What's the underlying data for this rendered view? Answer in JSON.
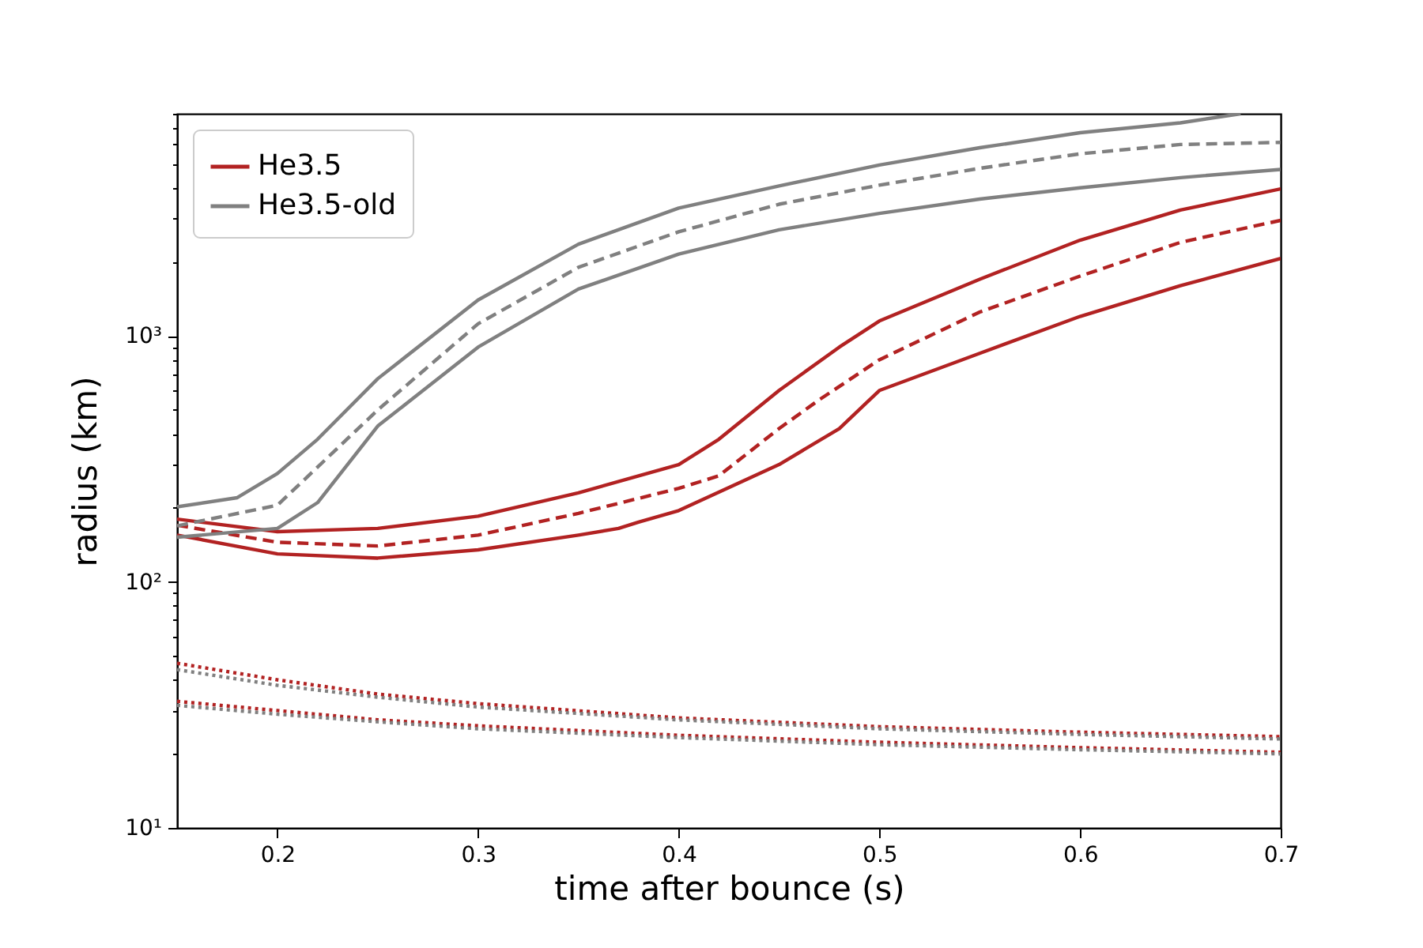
{
  "chart_data": {
    "type": "line",
    "xlabel": "time after bounce (s)",
    "ylabel": "radius (km)",
    "log": "y",
    "grid": false,
    "legend": "top left",
    "xlim": [
      0.15,
      0.7
    ],
    "xticks": [
      0.2,
      0.3,
      0.4,
      0.5,
      0.6,
      0.7
    ],
    "ylim": [
      10,
      8000
    ],
    "yticks": [
      {
        "value": 10,
        "label": "10¹"
      },
      {
        "value": 20,
        "label": null
      },
      {
        "value": 30,
        "label": null
      },
      {
        "value": 40,
        "label": null
      },
      {
        "value": 50,
        "label": null
      },
      {
        "value": 60,
        "label": null
      },
      {
        "value": 70,
        "label": null
      },
      {
        "value": 80,
        "label": null
      },
      {
        "value": 90,
        "label": null
      },
      {
        "value": 100,
        "label": "10²"
      },
      {
        "value": 200,
        "label": null
      },
      {
        "value": 300,
        "label": null
      },
      {
        "value": 400,
        "label": null
      },
      {
        "value": 500,
        "label": null
      },
      {
        "value": 600,
        "label": null
      },
      {
        "value": 700,
        "label": null
      },
      {
        "value": 800,
        "label": null
      },
      {
        "value": 900,
        "label": null
      },
      {
        "value": 1000,
        "label": "10³"
      },
      {
        "value": 2000,
        "label": null
      },
      {
        "value": 3000,
        "label": null
      },
      {
        "value": 4000,
        "label": null
      },
      {
        "value": 5000,
        "label": null
      },
      {
        "value": 6000,
        "label": null
      },
      {
        "value": 7000,
        "label": null
      },
      {
        "value": 8000,
        "label": null
      }
    ],
    "series": [
      {
        "name": "He3.5",
        "color": "#b22222",
        "line_style": "solid",
        "x": [
          0.15,
          0.2,
          0.25,
          0.3,
          0.35,
          0.38,
          0.4,
          0.42,
          0.45,
          0.48,
          0.5,
          0.55,
          0.6,
          0.65,
          0.7
        ],
        "values": [
          180,
          160,
          165,
          185,
          230,
          270,
          300,
          380,
          600,
          900,
          1150,
          1700,
          2450,
          3250,
          3960
        ]
      },
      {
        "color": "#b22222",
        "line_style": "dashed",
        "x": [
          0.15,
          0.2,
          0.25,
          0.3,
          0.35,
          0.4,
          0.42,
          0.45,
          0.47,
          0.5,
          0.55,
          0.6,
          0.65,
          0.7
        ],
        "values": [
          170,
          145,
          140,
          155,
          190,
          240,
          270,
          420,
          550,
          800,
          1250,
          1750,
          2400,
          2950
        ]
      },
      {
        "color": "#b22222",
        "line_style": "solid",
        "x": [
          0.15,
          0.2,
          0.25,
          0.3,
          0.35,
          0.37,
          0.38,
          0.4,
          0.45,
          0.48,
          0.5,
          0.55,
          0.6,
          0.65,
          0.7
        ],
        "values": [
          155,
          130,
          125,
          135,
          155,
          165,
          175,
          195,
          300,
          420,
          600,
          850,
          1200,
          1600,
          2065
        ]
      },
      {
        "name": "He3.5-old",
        "color": "#808080",
        "line_style": "solid",
        "x": [
          0.15,
          0.18,
          0.2,
          0.22,
          0.25,
          0.3,
          0.35,
          0.4,
          0.45,
          0.5,
          0.55,
          0.6,
          0.65,
          0.68
        ],
        "values": [
          202,
          220,
          276,
          380,
          670,
          1400,
          2360,
          3310,
          4070,
          4950,
          5820,
          6700,
          7350,
          8000
        ]
      },
      {
        "color": "#808080",
        "line_style": "dashed",
        "x": [
          0.15,
          0.2,
          0.25,
          0.3,
          0.35,
          0.4,
          0.45,
          0.5,
          0.55,
          0.6,
          0.65,
          0.7
        ],
        "values": [
          169,
          205,
          500,
          1120,
          1900,
          2650,
          3430,
          4100,
          4800,
          5500,
          6000,
          6120
        ]
      },
      {
        "color": "#808080",
        "line_style": "solid",
        "x": [
          0.15,
          0.2,
          0.22,
          0.25,
          0.3,
          0.35,
          0.4,
          0.45,
          0.5,
          0.55,
          0.6,
          0.65,
          0.7
        ],
        "values": [
          152,
          165,
          210,
          430,
          900,
          1550,
          2150,
          2700,
          3150,
          3600,
          4000,
          4400,
          4750
        ]
      },
      {
        "color": "#b22222",
        "line_style": "dotted",
        "x": [
          0.15,
          0.2,
          0.25,
          0.3,
          0.4,
          0.5,
          0.6,
          0.7
        ],
        "values": [
          46.7,
          40,
          35,
          32,
          28,
          25.8,
          24.5,
          23.5
        ]
      },
      {
        "color": "#808080",
        "line_style": "dotted",
        "x": [
          0.15,
          0.2,
          0.25,
          0.3,
          0.4,
          0.5,
          0.6,
          0.7
        ],
        "values": [
          44,
          38,
          34,
          31,
          27.5,
          25.3,
          24,
          23
        ]
      },
      {
        "color": "#b22222",
        "line_style": "dotted",
        "x": [
          0.15,
          0.2,
          0.25,
          0.3,
          0.4,
          0.5,
          0.6,
          0.7
        ],
        "values": [
          32.7,
          30,
          27.5,
          26,
          23.8,
          22.3,
          21.2,
          20.3
        ]
      },
      {
        "color": "#808080",
        "line_style": "dotted",
        "x": [
          0.15,
          0.2,
          0.25,
          0.3,
          0.4,
          0.5,
          0.6,
          0.7
        ],
        "values": [
          31.5,
          29,
          27,
          25.3,
          23.3,
          21.8,
          20.8,
          20
        ]
      }
    ]
  }
}
